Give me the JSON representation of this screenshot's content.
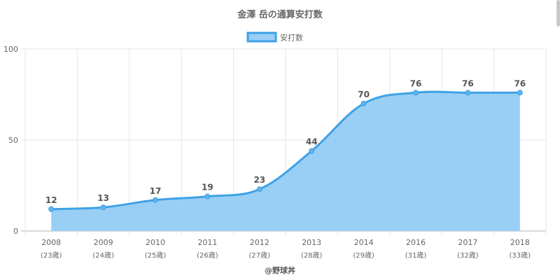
{
  "chart_data": {
    "type": "area",
    "title": "金澤 岳の通算安打数",
    "legend": {
      "placement": "top-center"
    },
    "series": [
      {
        "name": "安打数",
        "values": [
          12,
          13,
          17,
          19,
          23,
          44,
          70,
          76,
          76,
          76
        ]
      }
    ],
    "categories": [
      "2008",
      "2009",
      "2010",
      "2011",
      "2012",
      "2013",
      "2014",
      "2016",
      "2017",
      "2018"
    ],
    "ages": [
      "(23歳)",
      "(24歳)",
      "(25歳)",
      "(26歳)",
      "(27歳)",
      "(28歳)",
      "(29歳)",
      "(31歳)",
      "(32歳)",
      "(33歳)"
    ],
    "ylim": [
      0,
      100
    ],
    "yticks": [
      0,
      50,
      100
    ],
    "grid": true,
    "colors": {
      "line": "#3ea1e6",
      "fill": "#99cff5",
      "grid": "#e6e6e6",
      "axis": "#b4b4b4",
      "text": "#666666",
      "label": "#555555"
    }
  },
  "footer": {
    "credit": "@野球丼"
  }
}
